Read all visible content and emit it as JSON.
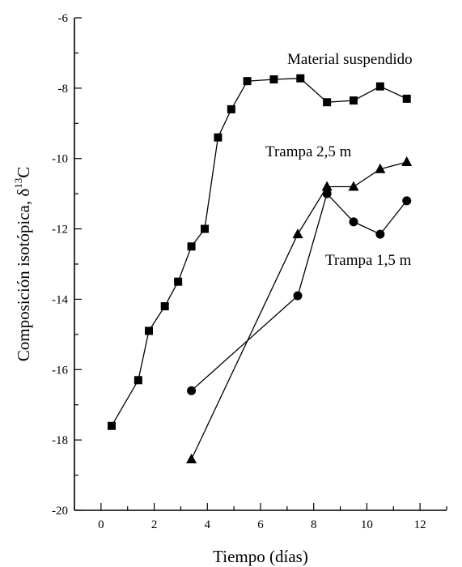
{
  "chart_data": {
    "type": "line",
    "xlabel": "Tiempo (días)",
    "ylabel_prefix": "Composición isotópica,  δ",
    "ylabel_sup": "13",
    "ylabel_suffix": "C",
    "xlim": [
      -1,
      13
    ],
    "ylim": [
      -20,
      -6
    ],
    "x_ticks": [
      0,
      2,
      4,
      6,
      8,
      10,
      12
    ],
    "x_tick_labels": [
      "0",
      "2",
      "4",
      "6",
      "8",
      "10",
      "12"
    ],
    "y_ticks": [
      -20,
      -18,
      -16,
      -14,
      -12,
      -10,
      -8,
      -6
    ],
    "y_tick_labels": [
      "-20",
      "-18",
      "-16",
      "-14",
      "-12",
      "-10",
      "-8",
      "-6"
    ],
    "grid": false,
    "series": [
      {
        "name": "Material suspendido",
        "marker": "square",
        "x": [
          0.4,
          1.4,
          1.8,
          2.4,
          2.9,
          3.4,
          3.9,
          4.4,
          4.9,
          5.5,
          6.5,
          7.5,
          8.5,
          9.5,
          10.5,
          11.5
        ],
        "y": [
          -17.6,
          -16.3,
          -14.9,
          -14.2,
          -13.5,
          -12.5,
          -12.0,
          -9.4,
          -8.6,
          -7.8,
          -7.75,
          -7.72,
          -8.4,
          -8.35,
          -7.95,
          -8.3
        ]
      },
      {
        "name": "Trampa 2,5 m",
        "marker": "triangle",
        "x": [
          3.4,
          7.4,
          8.5,
          9.5,
          10.5,
          11.5
        ],
        "y": [
          -18.55,
          -12.15,
          -10.8,
          -10.8,
          -10.3,
          -10.1
        ]
      },
      {
        "name": "Trampa 1,5 m",
        "marker": "circle",
        "x": [
          3.4,
          7.4,
          8.5,
          9.5,
          10.5,
          11.5
        ],
        "y": [
          -16.6,
          -13.9,
          -11.0,
          -11.8,
          -12.15,
          -11.2
        ]
      }
    ]
  }
}
